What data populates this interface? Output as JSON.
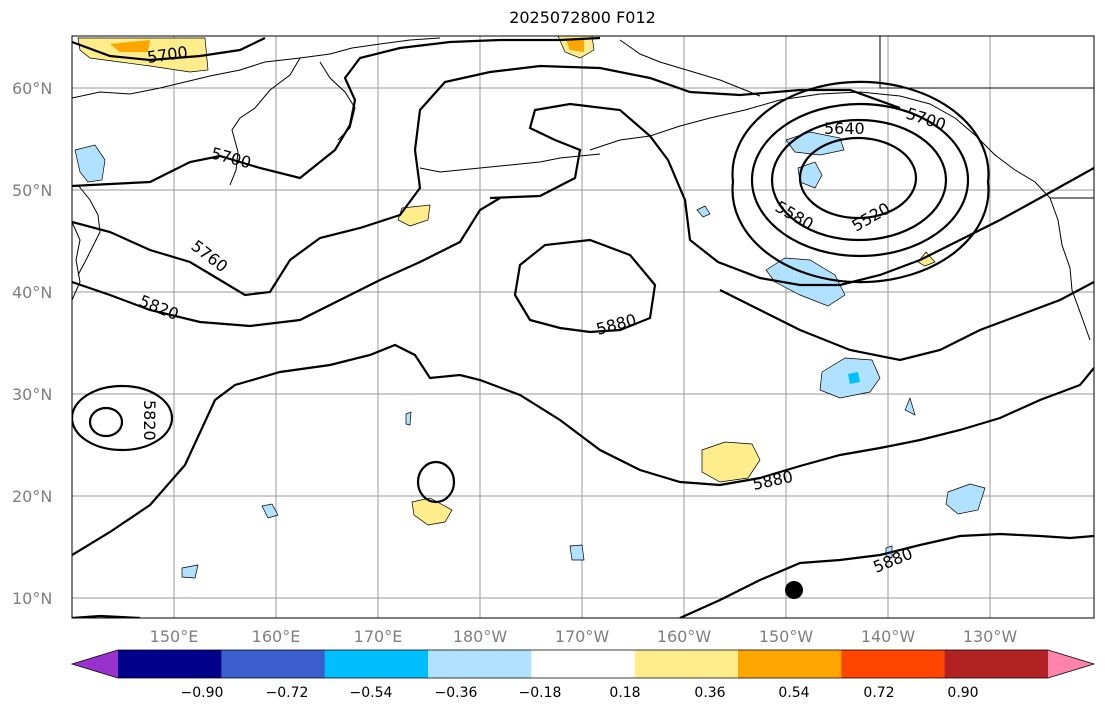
{
  "title": "2025072800 F012",
  "latitude_labels": [
    "60°N",
    "50°N",
    "40°N",
    "30°N",
    "20°N",
    "10°N"
  ],
  "longitude_labels": [
    "150°E",
    "160°E",
    "170°E",
    "180°W",
    "170°W",
    "160°W",
    "150°W",
    "140°W",
    "130°W"
  ],
  "contour_labels": [
    "5700",
    "5700",
    "5760",
    "5820",
    "5820",
    "5880",
    "5880",
    "5880",
    "5640",
    "5700",
    "5580",
    "5520"
  ],
  "colorbar": {
    "tick_labels": [
      "−0.90",
      "−0.72",
      "−0.54",
      "−0.36",
      "−0.18",
      "0.18",
      "0.36",
      "0.54",
      "0.72",
      "0.90"
    ],
    "colors": [
      "#9932cc",
      "#00008b",
      "#3a5fcd",
      "#00bfff",
      "#b0e2ff",
      "#ffffff",
      "#ffec8b",
      "#ffa500",
      "#ff4500",
      "#b22222",
      "#ff82ab"
    ]
  }
}
